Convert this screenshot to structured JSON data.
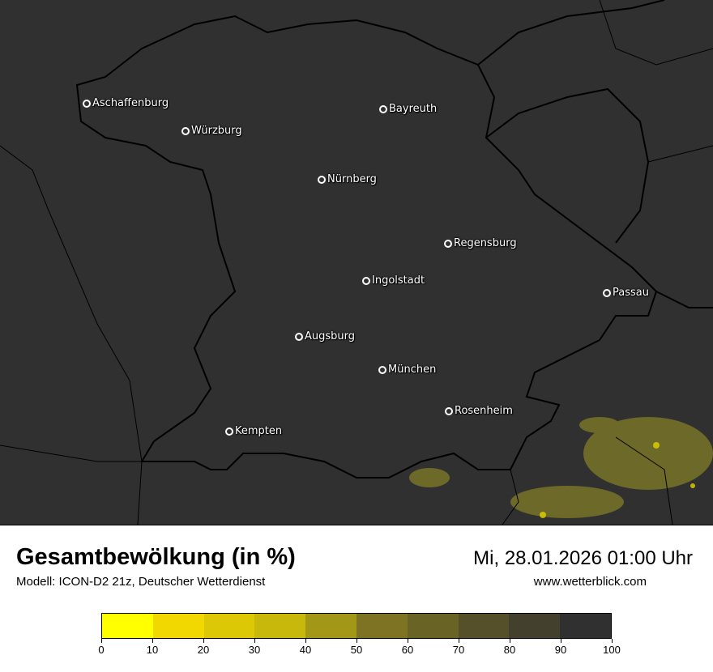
{
  "header": {
    "title": "Gesamtbewölkung (in %)",
    "subtitle": "Modell: ICON-D2 21z, Deutscher Wetterdienst",
    "datetime": "Mi, 28.01.2026 01:00 Uhr",
    "website": "www.wetterblick.com"
  },
  "map": {
    "background": "#303030",
    "cities": [
      {
        "name": "Aschaffenburg"
      },
      {
        "name": "Würzburg"
      },
      {
        "name": "Bayreuth"
      },
      {
        "name": "Nürnberg"
      },
      {
        "name": "Regensburg"
      },
      {
        "name": "Ingolstadt"
      },
      {
        "name": "Passau"
      },
      {
        "name": "Augsburg"
      },
      {
        "name": "München"
      },
      {
        "name": "Rosenheim"
      },
      {
        "name": "Kempten"
      }
    ]
  },
  "legend": {
    "ticks": [
      "0",
      "10",
      "20",
      "30",
      "40",
      "50",
      "60",
      "70",
      "80",
      "90",
      "100"
    ],
    "colors": [
      "#ffff00",
      "#f0d800",
      "#dcc805",
      "#c8b80c",
      "#a39718",
      "#7d7323",
      "#6a6326",
      "#554f2a",
      "#43402d",
      "#303030"
    ]
  }
}
